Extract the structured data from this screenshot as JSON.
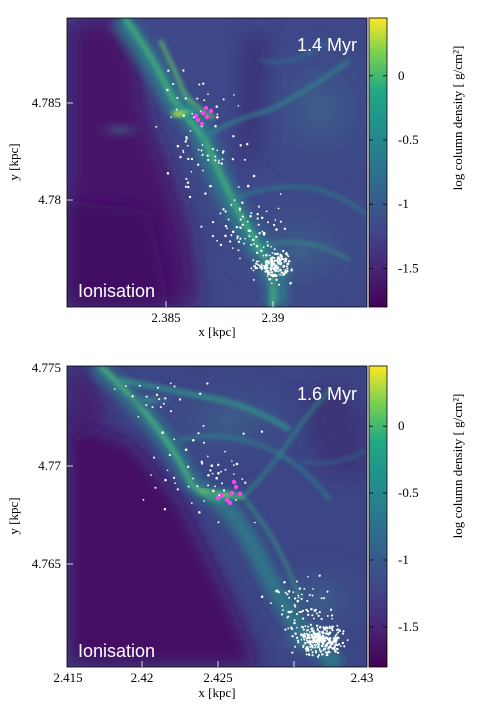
{
  "panels": [
    {
      "time_label": "1.4 Myr",
      "mode_label": "Ionisation",
      "x_label": "x [kpc]",
      "y_label": "y [kpc]",
      "x_ticks": [
        "2.385",
        "2.39"
      ],
      "y_ticks": [
        "4.785",
        "4.78"
      ],
      "colorbar_label": "log column density [ g/cm²]",
      "colorbar_ticks": [
        "0",
        "-0.5",
        "-1",
        "-1.5"
      ],
      "colorbar_range": [
        -1.8,
        0.45
      ]
    },
    {
      "time_label": "1.6 Myr",
      "mode_label": "Ionisation",
      "x_label": "x [kpc]",
      "y_label": "y [kpc]",
      "x_ticks": [
        "2.415",
        "2.42",
        "2.425",
        "2.43"
      ],
      "y_ticks": [
        "4.775",
        "4.77",
        "4.765"
      ],
      "colorbar_label": "log column density [ g/cm²]",
      "colorbar_ticks": [
        "0",
        "-0.5",
        "-1",
        "-1.5"
      ],
      "colorbar_range": [
        -1.8,
        0.45
      ]
    }
  ],
  "colormap": "viridis",
  "colors": {
    "star_particles": "#ffffff",
    "sink_particles": "#ff44ee"
  }
}
